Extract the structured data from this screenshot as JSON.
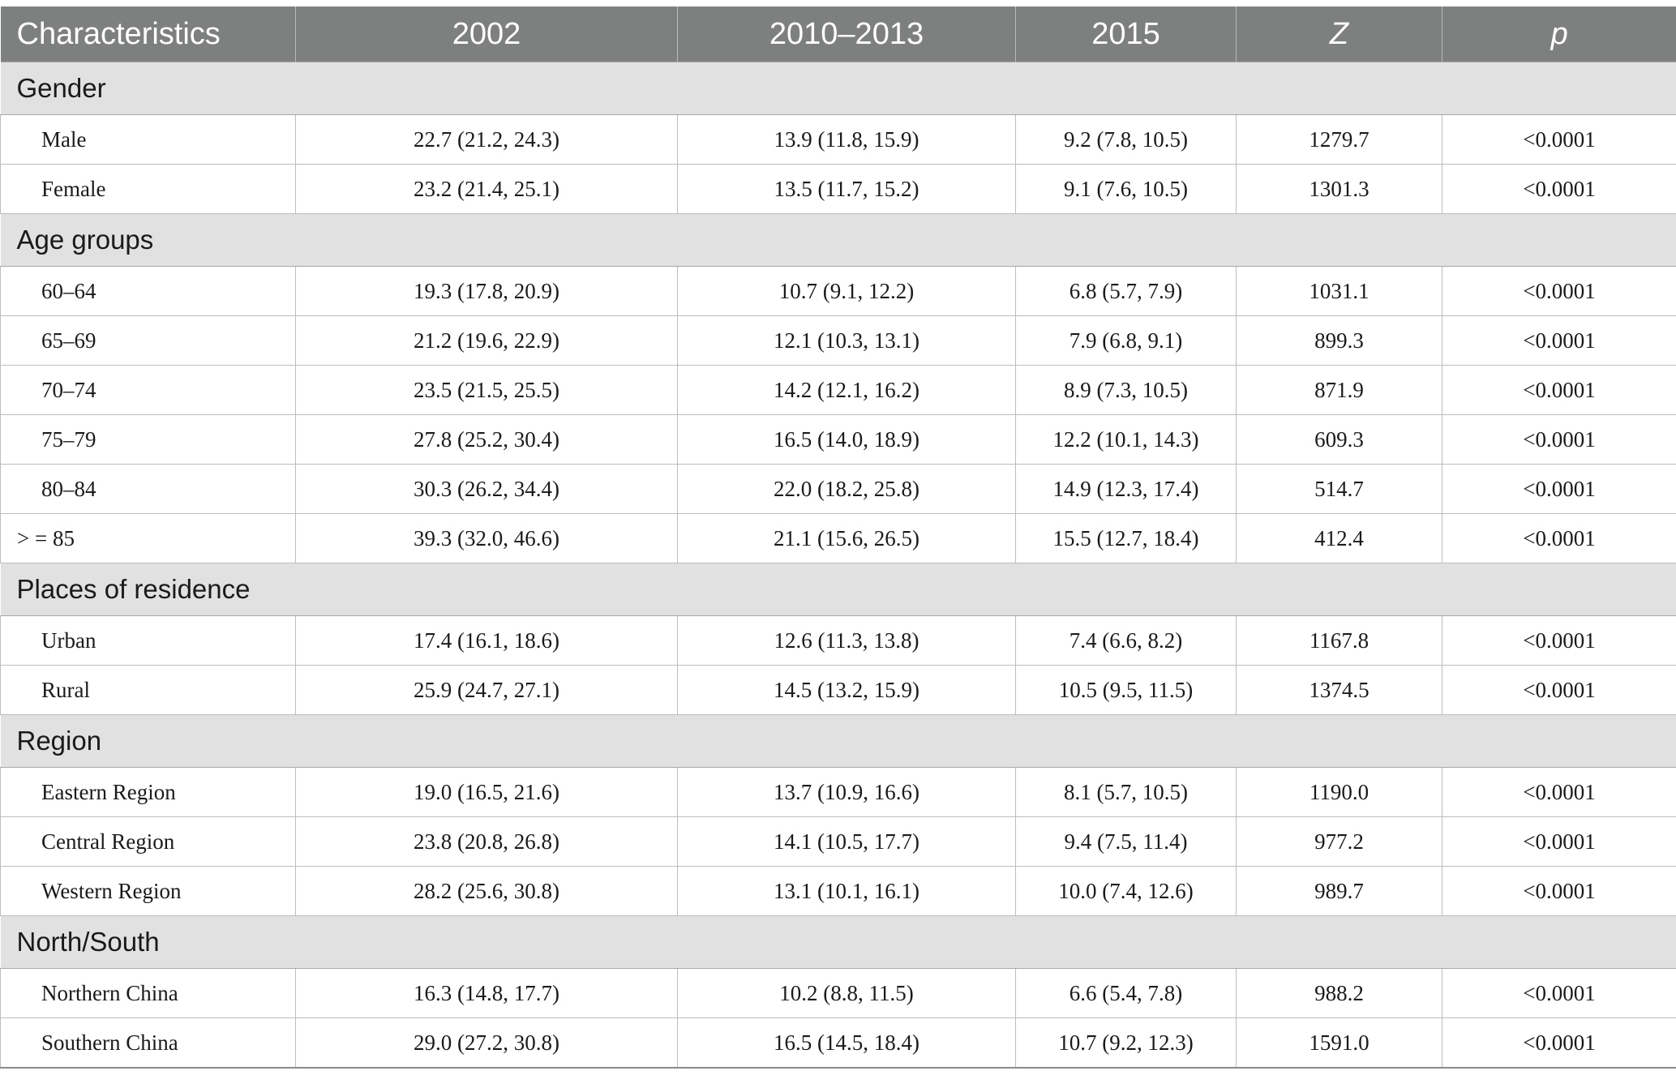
{
  "header": {
    "characteristics": "Characteristics",
    "y2002": "2002",
    "y2010_2013": "2010–2013",
    "y2015": "2015",
    "z": "Z",
    "p": "p"
  },
  "sections": [
    {
      "title": "Gender",
      "rows": [
        {
          "label": "Male",
          "v2002": "22.7 (21.2, 24.3)",
          "v2010": "13.9 (11.8, 15.9)",
          "v2015": "9.2 (7.8, 10.5)",
          "z": "1279.7",
          "p": "<0.0001"
        },
        {
          "label": "Female",
          "v2002": "23.2 (21.4, 25.1)",
          "v2010": "13.5 (11.7, 15.2)",
          "v2015": "9.1 (7.6, 10.5)",
          "z": "1301.3",
          "p": "<0.0001"
        }
      ]
    },
    {
      "title": "Age groups",
      "rows": [
        {
          "label": "60–64",
          "v2002": "19.3 (17.8, 20.9)",
          "v2010": "10.7 (9.1, 12.2)",
          "v2015": "6.8 (5.7, 7.9)",
          "z": "1031.1",
          "p": "<0.0001"
        },
        {
          "label": "65–69",
          "v2002": "21.2 (19.6, 22.9)",
          "v2010": "12.1 (10.3, 13.1)",
          "v2015": "7.9 (6.8, 9.1)",
          "z": "899.3",
          "p": "<0.0001"
        },
        {
          "label": "70–74",
          "v2002": "23.5 (21.5, 25.5)",
          "v2010": "14.2 (12.1, 16.2)",
          "v2015": "8.9 (7.3, 10.5)",
          "z": "871.9",
          "p": "<0.0001"
        },
        {
          "label": "75–79",
          "v2002": "27.8 (25.2, 30.4)",
          "v2010": "16.5 (14.0, 18.9)",
          "v2015": "12.2 (10.1, 14.3)",
          "z": "609.3",
          "p": "<0.0001"
        },
        {
          "label": "80–84",
          "v2002": "30.3 (26.2, 34.4)",
          "v2010": "22.0 (18.2, 25.8)",
          "v2015": "14.9 (12.3, 17.4)",
          "z": "514.7",
          "p": "<0.0001"
        },
        {
          "label": "> = 85",
          "v2002": "39.3 (32.0, 46.6)",
          "v2010": "21.1 (15.6, 26.5)",
          "v2015": "15.5 (12.7, 18.4)",
          "z": "412.4",
          "p": "<0.0001"
        }
      ]
    },
    {
      "title": "Places of residence",
      "rows": [
        {
          "label": "Urban",
          "v2002": "17.4 (16.1, 18.6)",
          "v2010": "12.6 (11.3, 13.8)",
          "v2015": "7.4 (6.6, 8.2)",
          "z": "1167.8",
          "p": "<0.0001"
        },
        {
          "label": "Rural",
          "v2002": "25.9 (24.7, 27.1)",
          "v2010": "14.5 (13.2, 15.9)",
          "v2015": "10.5 (9.5, 11.5)",
          "z": "1374.5",
          "p": "<0.0001"
        }
      ]
    },
    {
      "title": "Region",
      "rows": [
        {
          "label": "Eastern Region",
          "v2002": "19.0 (16.5, 21.6)",
          "v2010": "13.7 (10.9, 16.6)",
          "v2015": "8.1 (5.7, 10.5)",
          "z": "1190.0",
          "p": "<0.0001"
        },
        {
          "label": "Central Region",
          "v2002": "23.8 (20.8, 26.8)",
          "v2010": "14.1 (10.5, 17.7)",
          "v2015": "9.4 (7.5, 11.4)",
          "z": "977.2",
          "p": "<0.0001"
        },
        {
          "label": "Western Region",
          "v2002": "28.2 (25.6, 30.8)",
          "v2010": "13.1 (10.1, 16.1)",
          "v2015": "10.0 (7.4, 12.6)",
          "z": "989.7",
          "p": "<0.0001"
        }
      ]
    },
    {
      "title": "North/South",
      "rows": [
        {
          "label": "Northern China",
          "v2002": "16.3 (14.8, 17.7)",
          "v2010": "10.2 (8.8, 11.5)",
          "v2015": "6.6 (5.4, 7.8)",
          "z": "988.2",
          "p": "<0.0001"
        },
        {
          "label": "Southern China",
          "v2002": "29.0 (27.2, 30.8)",
          "v2010": "16.5 (14.5, 18.4)",
          "v2015": "10.7 (9.2, 12.3)",
          "z": "1591.0",
          "p": "<0.0001"
        }
      ]
    }
  ]
}
